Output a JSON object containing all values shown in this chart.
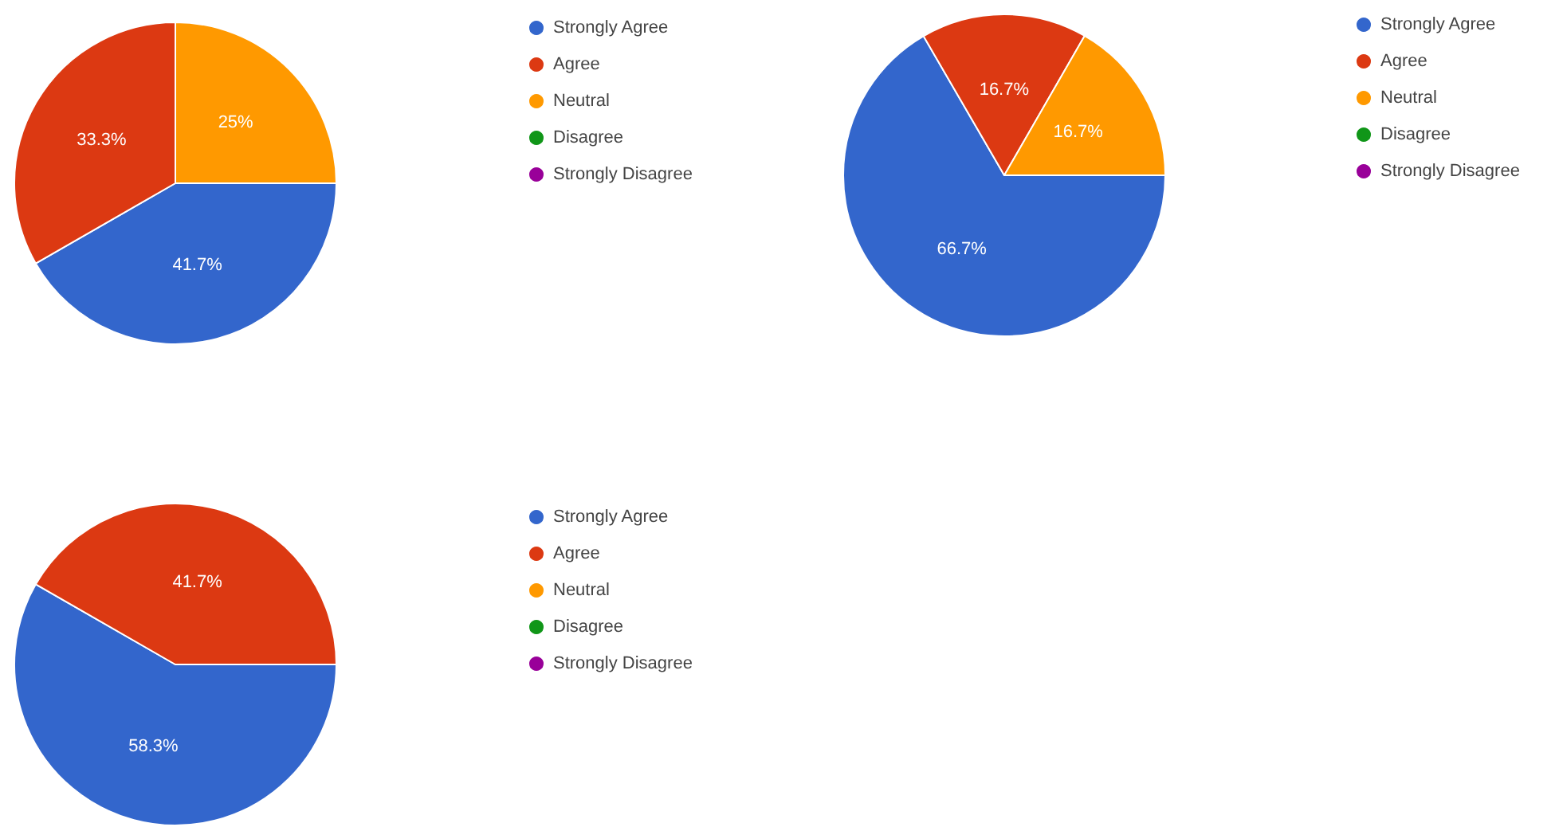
{
  "chart_data": [
    {
      "type": "pie",
      "categories": [
        "Strongly Agree",
        "Agree",
        "Neutral",
        "Disagree",
        "Strongly Disagree"
      ],
      "values": [
        41.7,
        33.3,
        25,
        0,
        0
      ],
      "value_labels": [
        "41.7%",
        "33.3%",
        "25%",
        null,
        null
      ],
      "colors": [
        "#3366cc",
        "#dc3912",
        "#ff9900",
        "#109618",
        "#990099"
      ],
      "legend": "right"
    },
    {
      "type": "pie",
      "categories": [
        "Strongly Agree",
        "Agree",
        "Neutral",
        "Disagree",
        "Strongly Disagree"
      ],
      "values": [
        66.7,
        16.7,
        16.7,
        0,
        0
      ],
      "value_labels": [
        "66.7%",
        "16.7%",
        "16.7%",
        null,
        null
      ],
      "colors": [
        "#3366cc",
        "#dc3912",
        "#ff9900",
        "#109618",
        "#990099"
      ],
      "legend": "right"
    },
    {
      "type": "pie",
      "categories": [
        "Strongly Agree",
        "Agree",
        "Neutral",
        "Disagree",
        "Strongly Disagree"
      ],
      "values": [
        58.3,
        41.7,
        0,
        0,
        0
      ],
      "value_labels": [
        "58.3%",
        "41.7%",
        null,
        null,
        null
      ],
      "colors": [
        "#3366cc",
        "#dc3912",
        "#ff9900",
        "#109618",
        "#990099"
      ],
      "legend": "right"
    }
  ]
}
